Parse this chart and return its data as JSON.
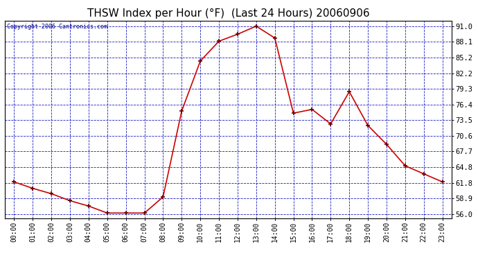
{
  "title": "THSW Index per Hour (°F)  (Last 24 Hours) 20060906",
  "copyright": "Copyright 2006 Cantronics.com",
  "hours": [
    0,
    1,
    2,
    3,
    4,
    5,
    6,
    7,
    8,
    9,
    10,
    11,
    12,
    13,
    14,
    15,
    16,
    17,
    18,
    19,
    20,
    21,
    22,
    23
  ],
  "values": [
    62.0,
    60.8,
    59.8,
    58.5,
    57.5,
    56.2,
    56.2,
    56.2,
    59.2,
    75.2,
    84.5,
    88.2,
    89.5,
    91.0,
    88.8,
    74.8,
    75.5,
    72.8,
    78.8,
    72.5,
    69.0,
    65.0,
    63.5,
    62.0
  ],
  "y_ticks": [
    56.0,
    58.9,
    61.8,
    64.8,
    67.7,
    70.6,
    73.5,
    76.4,
    79.3,
    82.2,
    85.2,
    88.1,
    91.0
  ],
  "ylim": [
    55.2,
    92.0
  ],
  "xlim": [
    -0.5,
    23.5
  ],
  "bg_color": "#ffffff",
  "plot_bg": "#ffffff",
  "line_color": "#cc0000",
  "marker_color": "#660000",
  "grid_color": "#0000bb",
  "title_color": "#000000",
  "border_color": "#000000",
  "title_fontsize": 11,
  "tick_fontsize": 7,
  "copyright_fontsize": 6
}
